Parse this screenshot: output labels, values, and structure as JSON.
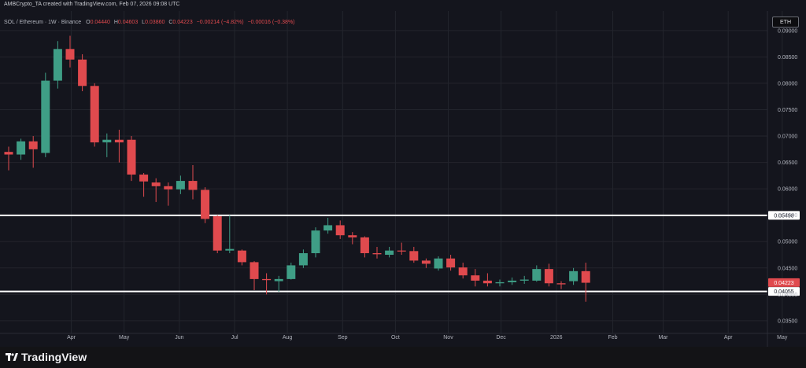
{
  "header": {
    "created_by": "AMBCrypto_TA created with TradingView.com, Feb 07, 2026 09:08 UTC"
  },
  "symbol_button": "ETH",
  "brand": {
    "name": "TradingView"
  },
  "colors": {
    "up": "#3f9e86",
    "down": "#e04a4e",
    "background": "#14151d",
    "grid": "#23252d",
    "text": "#b2b5be",
    "level_line": "#ffffff"
  },
  "chart_data": {
    "type": "candlestick",
    "symbol_line": {
      "name": "SOL / Ethereum · 1W · Binance",
      "o_label": "O",
      "o": "0.04440",
      "h_label": "H",
      "h": "0.04603",
      "l_label": "L",
      "l": "0.03860",
      "c_label": "C",
      "c": "0.04223",
      "change": "−0.00214 (−4.82%)",
      "spread": "−0.00016 (−0.38%)"
    },
    "y_ticks": [
      "0.09000",
      "0.08500",
      "0.08000",
      "0.07500",
      "0.07000",
      "0.06500",
      "0.06000",
      "0.05500",
      "0.05000",
      "0.04500",
      "0.04000",
      "0.03500"
    ],
    "ylim": [
      0.0326,
      0.0937
    ],
    "x_labels": [
      {
        "label": "Apr",
        "at": 5.1
      },
      {
        "label": "May",
        "at": 9.4
      },
      {
        "label": "Jun",
        "at": 13.9
      },
      {
        "label": "Jul",
        "at": 18.4
      },
      {
        "label": "Aug",
        "at": 22.7
      },
      {
        "label": "Sep",
        "at": 27.2
      },
      {
        "label": "Oct",
        "at": 31.5
      },
      {
        "label": "Nov",
        "at": 35.8
      },
      {
        "label": "Dec",
        "at": 40.1
      },
      {
        "label": "2026",
        "at": 44.6
      },
      {
        "label": "Feb",
        "at": 49.2
      },
      {
        "label": "Mar",
        "at": 53.3
      },
      {
        "label": "Apr",
        "at": 58.6
      },
      {
        "label": "May",
        "at": 63.0
      }
    ],
    "levels": [
      {
        "price": 0.05498,
        "label": "0.05498"
      },
      {
        "price": 0.04055,
        "label": "0.04055"
      }
    ],
    "last_price_label": "0.04223",
    "last_price": 0.04223,
    "candles": [
      {
        "o": 0.067,
        "h": 0.068,
        "l": 0.0635,
        "c": 0.0665
      },
      {
        "o": 0.0665,
        "h": 0.0695,
        "l": 0.0655,
        "c": 0.069
      },
      {
        "o": 0.069,
        "h": 0.07,
        "l": 0.064,
        "c": 0.0675
      },
      {
        "o": 0.0668,
        "h": 0.082,
        "l": 0.066,
        "c": 0.0805
      },
      {
        "o": 0.0805,
        "h": 0.088,
        "l": 0.079,
        "c": 0.0865
      },
      {
        "o": 0.0865,
        "h": 0.089,
        "l": 0.083,
        "c": 0.0845
      },
      {
        "o": 0.0845,
        "h": 0.0855,
        "l": 0.0785,
        "c": 0.0795
      },
      {
        "o": 0.0795,
        "h": 0.08,
        "l": 0.068,
        "c": 0.0688
      },
      {
        "o": 0.0688,
        "h": 0.0705,
        "l": 0.066,
        "c": 0.0693
      },
      {
        "o": 0.0693,
        "h": 0.0712,
        "l": 0.065,
        "c": 0.0688
      },
      {
        "o": 0.0693,
        "h": 0.07,
        "l": 0.0615,
        "c": 0.0627
      },
      {
        "o": 0.0627,
        "h": 0.063,
        "l": 0.0585,
        "c": 0.0614
      },
      {
        "o": 0.0612,
        "h": 0.062,
        "l": 0.0575,
        "c": 0.0605
      },
      {
        "o": 0.0605,
        "h": 0.0612,
        "l": 0.0568,
        "c": 0.0599
      },
      {
        "o": 0.0599,
        "h": 0.0625,
        "l": 0.059,
        "c": 0.0615
      },
      {
        "o": 0.0615,
        "h": 0.0645,
        "l": 0.058,
        "c": 0.0598
      },
      {
        "o": 0.0598,
        "h": 0.0603,
        "l": 0.0535,
        "c": 0.0543
      },
      {
        "o": 0.0548,
        "h": 0.055,
        "l": 0.0478,
        "c": 0.0483
      },
      {
        "o": 0.0483,
        "h": 0.055,
        "l": 0.0478,
        "c": 0.0486
      },
      {
        "o": 0.0483,
        "h": 0.0485,
        "l": 0.0455,
        "c": 0.0461
      },
      {
        "o": 0.0461,
        "h": 0.0463,
        "l": 0.0408,
        "c": 0.0429
      },
      {
        "o": 0.0429,
        "h": 0.044,
        "l": 0.04,
        "c": 0.0427
      },
      {
        "o": 0.0425,
        "h": 0.0435,
        "l": 0.0405,
        "c": 0.0429
      },
      {
        "o": 0.0429,
        "h": 0.046,
        "l": 0.0428,
        "c": 0.0455
      },
      {
        "o": 0.0455,
        "h": 0.0485,
        "l": 0.045,
        "c": 0.0478
      },
      {
        "o": 0.0478,
        "h": 0.0527,
        "l": 0.047,
        "c": 0.0521
      },
      {
        "o": 0.0521,
        "h": 0.0545,
        "l": 0.0515,
        "c": 0.0531
      },
      {
        "o": 0.0531,
        "h": 0.054,
        "l": 0.0505,
        "c": 0.0512
      },
      {
        "o": 0.0512,
        "h": 0.0518,
        "l": 0.0495,
        "c": 0.0508
      },
      {
        "o": 0.0508,
        "h": 0.051,
        "l": 0.047,
        "c": 0.0478
      },
      {
        "o": 0.0478,
        "h": 0.049,
        "l": 0.0468,
        "c": 0.0476
      },
      {
        "o": 0.0475,
        "h": 0.049,
        "l": 0.047,
        "c": 0.0483
      },
      {
        "o": 0.0483,
        "h": 0.0498,
        "l": 0.0475,
        "c": 0.0482
      },
      {
        "o": 0.0482,
        "h": 0.049,
        "l": 0.046,
        "c": 0.0464
      },
      {
        "o": 0.0464,
        "h": 0.0468,
        "l": 0.045,
        "c": 0.0458
      },
      {
        "o": 0.0449,
        "h": 0.0472,
        "l": 0.0445,
        "c": 0.0468
      },
      {
        "o": 0.0468,
        "h": 0.0475,
        "l": 0.0445,
        "c": 0.0451
      },
      {
        "o": 0.0451,
        "h": 0.046,
        "l": 0.043,
        "c": 0.0436
      },
      {
        "o": 0.0436,
        "h": 0.0448,
        "l": 0.0415,
        "c": 0.0426
      },
      {
        "o": 0.0426,
        "h": 0.044,
        "l": 0.0415,
        "c": 0.0421
      },
      {
        "o": 0.0421,
        "h": 0.0428,
        "l": 0.0415,
        "c": 0.0423
      },
      {
        "o": 0.0423,
        "h": 0.0432,
        "l": 0.0418,
        "c": 0.0426
      },
      {
        "o": 0.0426,
        "h": 0.0435,
        "l": 0.042,
        "c": 0.0428
      },
      {
        "o": 0.0426,
        "h": 0.0455,
        "l": 0.0424,
        "c": 0.0448
      },
      {
        "o": 0.0448,
        "h": 0.0458,
        "l": 0.0415,
        "c": 0.0421
      },
      {
        "o": 0.0421,
        "h": 0.0425,
        "l": 0.041,
        "c": 0.0419
      },
      {
        "o": 0.0425,
        "h": 0.045,
        "l": 0.0418,
        "c": 0.0444
      },
      {
        "o": 0.0444,
        "h": 0.046,
        "l": 0.0386,
        "c": 0.0422
      }
    ]
  }
}
